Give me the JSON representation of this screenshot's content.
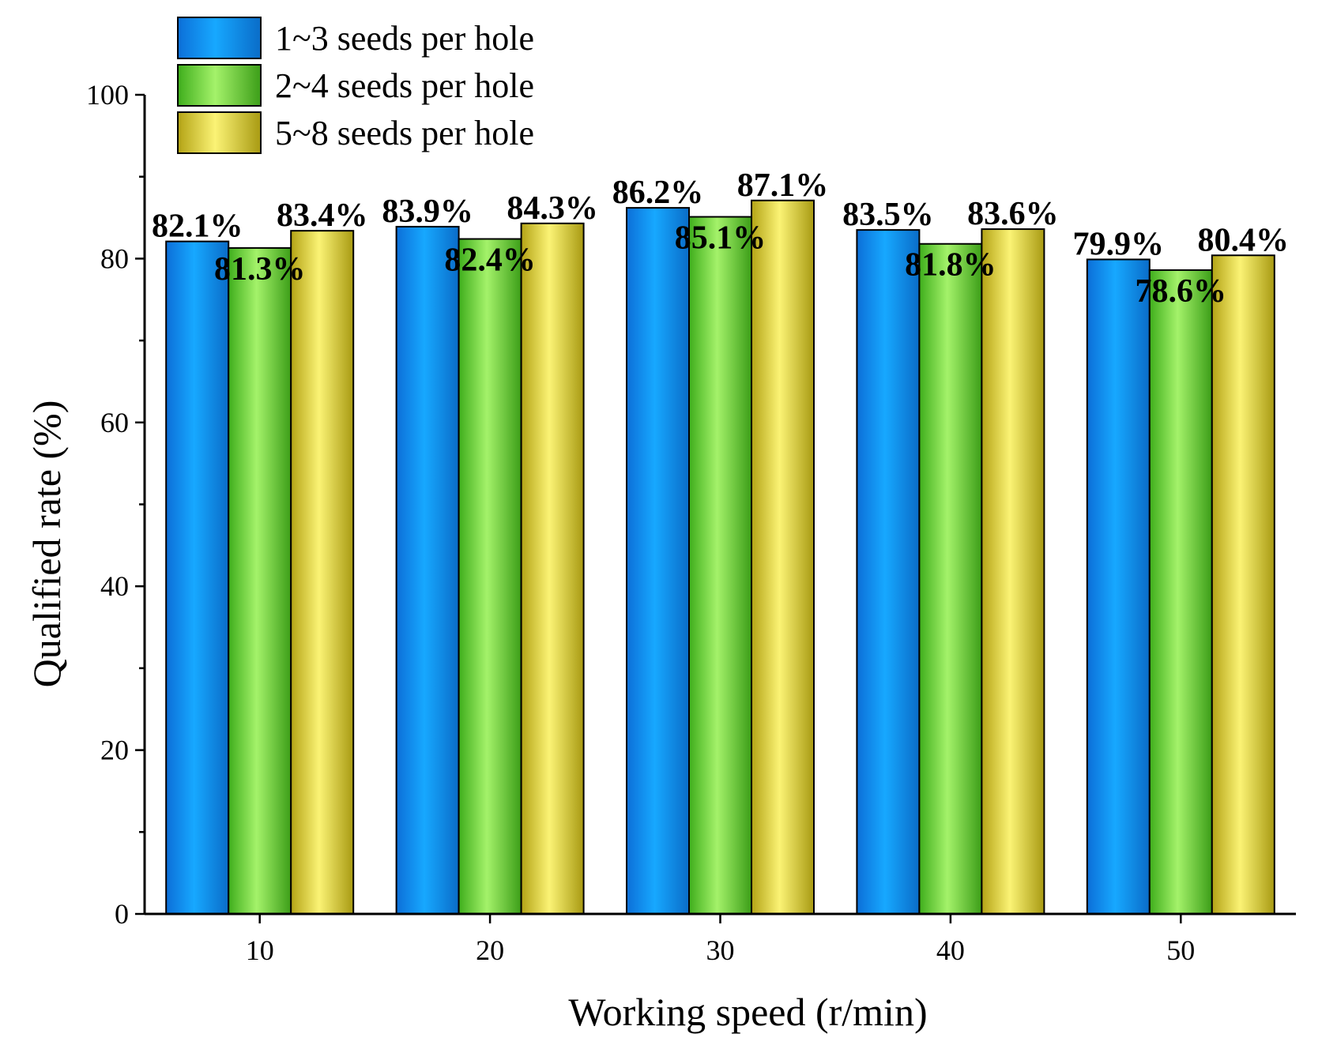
{
  "chart_data": {
    "type": "bar",
    "title": "",
    "xlabel": "Working speed (r/min)",
    "ylabel": "Qualified rate (%)",
    "categories": [
      "10",
      "20",
      "30",
      "40",
      "50"
    ],
    "ylim": [
      0,
      100
    ],
    "yticks": [
      "0",
      "20",
      "40",
      "60",
      "80",
      "100"
    ],
    "grid": false,
    "legend_position": "top-left",
    "series": [
      {
        "name": "1~3 seeds per hole",
        "color": "#0a97f2",
        "values": [
          82.1,
          83.9,
          86.2,
          83.5,
          79.9
        ],
        "labels": [
          "82.1%",
          "83.9%",
          "86.2%",
          "83.5%",
          "79.9%"
        ]
      },
      {
        "name": "2~4 seeds per hole",
        "color": "#6fd83a",
        "values": [
          81.3,
          82.4,
          85.1,
          81.8,
          78.6
        ],
        "labels": [
          "81.3%",
          "82.4%",
          "85.1%",
          "81.8%",
          "78.6%"
        ]
      },
      {
        "name": "5~8 seeds per hole",
        "color": "#d9cc3c",
        "values": [
          83.4,
          84.3,
          87.1,
          83.6,
          80.4
        ],
        "labels": [
          "83.4%",
          "84.3%",
          "87.1%",
          "83.6%",
          "80.4%"
        ]
      }
    ]
  }
}
